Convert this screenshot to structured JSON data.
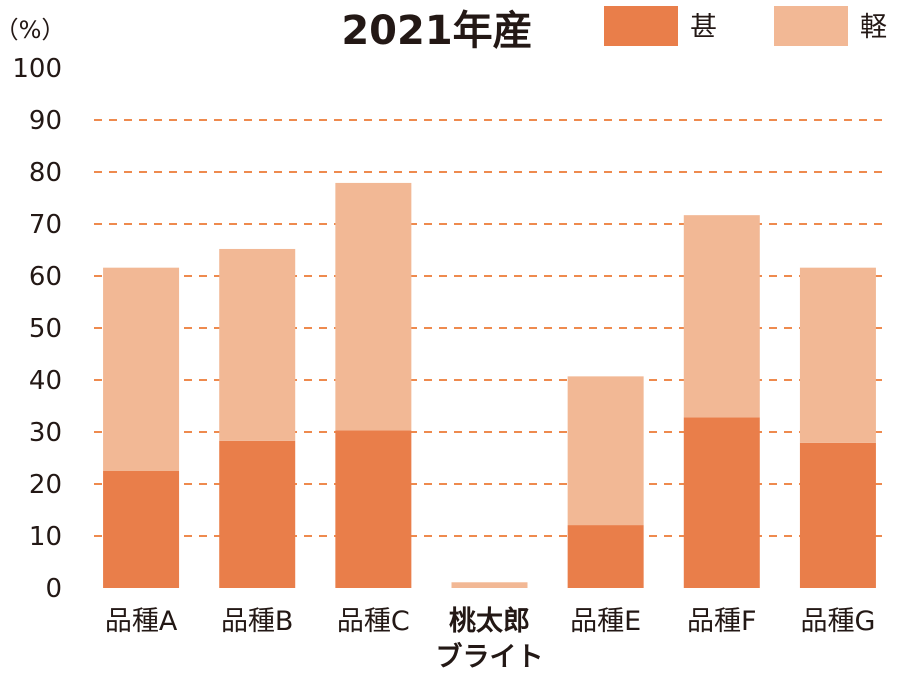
{
  "chart_data": {
    "type": "bar",
    "stacked": true,
    "title": "2021年産",
    "ylabel": "（%）",
    "ylim": [
      0,
      100
    ],
    "yticks": [
      0,
      10,
      20,
      30,
      40,
      50,
      60,
      70,
      80,
      90,
      100
    ],
    "grid": true,
    "legend_position": "top-right",
    "categories": [
      [
        "品種A"
      ],
      [
        "品種B"
      ],
      [
        "品種C"
      ],
      [
        "桃太郎",
        "ブライト"
      ],
      [
        "品種E"
      ],
      [
        "品種F"
      ],
      [
        "品種G"
      ]
    ],
    "highlighted_category_index": 3,
    "series": [
      {
        "name": "甚",
        "color": "#E97E4A",
        "values": [
          22.5,
          28.3,
          30.3,
          0,
          12.1,
          32.8,
          27.9
        ]
      },
      {
        "name": "軽",
        "color": "#F2B895",
        "values": [
          39.1,
          36.9,
          47.6,
          1.1,
          28.6,
          38.9,
          33.7
        ]
      }
    ],
    "grid_color": "#EE8A4E"
  }
}
